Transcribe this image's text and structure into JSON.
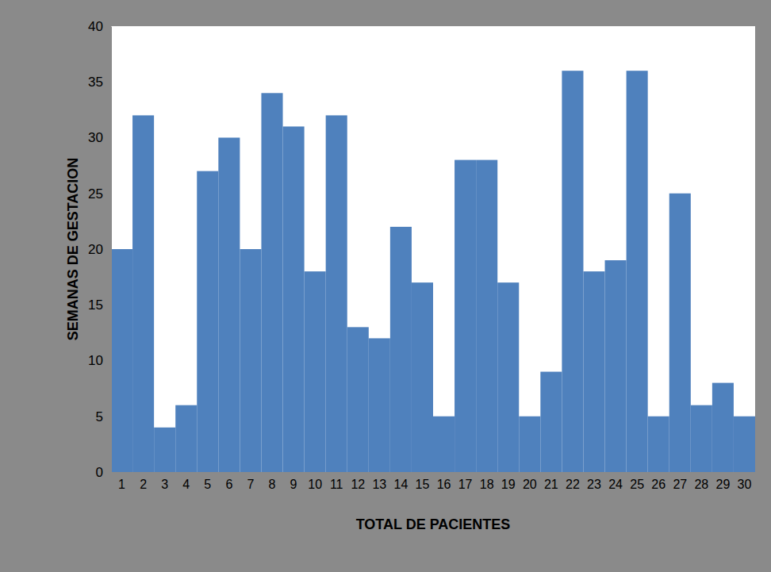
{
  "chart_data": {
    "type": "bar",
    "x_label": "TOTAL DE PACIENTES",
    "y_label": "SEMANAS DE GESTACION",
    "categories": [
      "1",
      "2",
      "3",
      "4",
      "5",
      "6",
      "7",
      "8",
      "9",
      "10",
      "11",
      "12",
      "13",
      "14",
      "15",
      "16",
      "17",
      "18",
      "19",
      "20",
      "21",
      "22",
      "23",
      "24",
      "25",
      "26",
      "27",
      "28",
      "29",
      "30"
    ],
    "values": [
      20,
      32,
      4,
      6,
      27,
      30,
      20,
      34,
      31,
      18,
      32,
      13,
      12,
      22,
      17,
      5,
      28,
      28,
      17,
      5,
      9,
      36,
      18,
      19,
      36,
      5,
      25,
      6,
      8,
      5
    ],
    "color": "#4f81bd",
    "ylim": [
      0,
      40
    ],
    "yticks": [
      0,
      5,
      10,
      15,
      20,
      25,
      30,
      35,
      40
    ],
    "grid": false
  }
}
